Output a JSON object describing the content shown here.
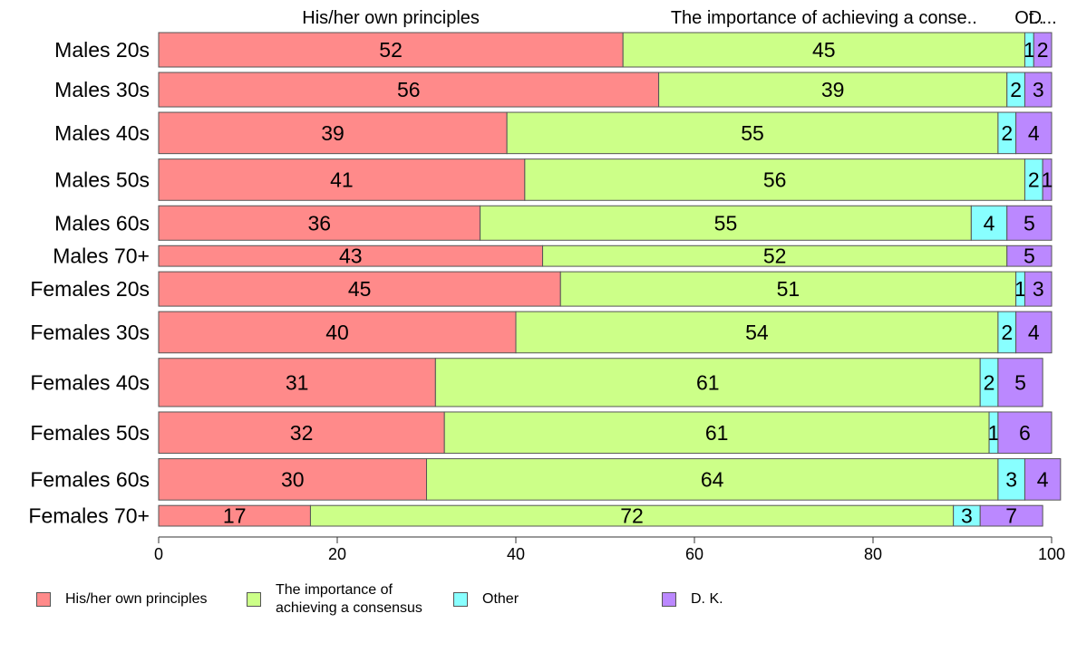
{
  "chart_data": {
    "type": "bar",
    "orientation": "horizontal",
    "stacked": true,
    "top_labels": [
      "His/her own principles",
      "The importance of achieving a conse..",
      "Ot..",
      "D..."
    ],
    "categories": [
      "Males 20s",
      "Males 30s",
      "Males 40s",
      "Males 50s",
      "Males 60s",
      "Males 70+",
      "Females 20s",
      "Females 30s",
      "Females 40s",
      "Females 50s",
      "Females 60s",
      "Females 70+"
    ],
    "row_weights": [
      5,
      5,
      6,
      6,
      5,
      3,
      5,
      6,
      7,
      6,
      6,
      3
    ],
    "series": [
      {
        "name": "His/her own principles",
        "color": "#FF8A8A",
        "values": [
          52,
          56,
          39,
          41,
          36,
          43,
          45,
          40,
          31,
          32,
          30,
          17
        ]
      },
      {
        "name": "The importance of\nachieving a consensus",
        "color": "#CCFF88",
        "values": [
          45,
          39,
          55,
          56,
          55,
          52,
          51,
          54,
          61,
          61,
          64,
          72
        ]
      },
      {
        "name": "Other",
        "color": "#88FFFF",
        "values": [
          1,
          2,
          2,
          2,
          4,
          0,
          1,
          2,
          2,
          1,
          3,
          3
        ]
      },
      {
        "name": "D. K.",
        "color": "#BB88FF",
        "values": [
          2,
          3,
          4,
          1,
          5,
          5,
          3,
          4,
          5,
          6,
          4,
          7
        ]
      }
    ],
    "xlim": [
      0,
      100
    ],
    "xticks": [
      0,
      20,
      40,
      60,
      80,
      100
    ],
    "legend_position": "bottom"
  }
}
